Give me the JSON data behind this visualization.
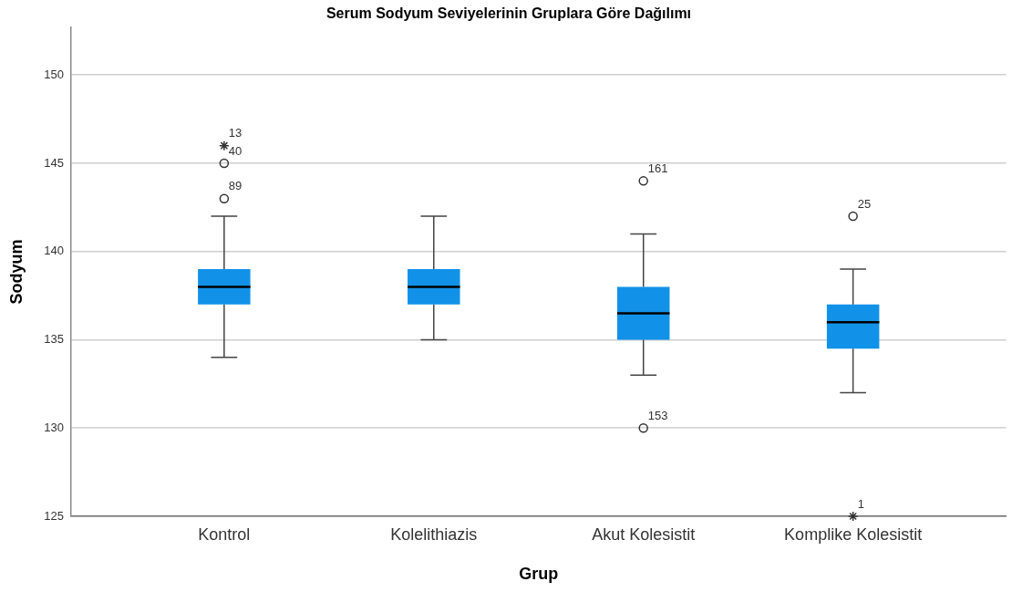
{
  "chart_data": {
    "type": "box",
    "title": "Serum Sodyum Seviyelerinin Gruplara Göre Dağılımı",
    "xlabel": "Grup",
    "ylabel": "Sodyum",
    "categories": [
      "Kontrol",
      "Kolelithiazis",
      "Akut Kolesistit",
      "Komplike Kolesistit"
    ],
    "series": [
      {
        "type": "box",
        "color": "#1192e8",
        "boxes": [
          {
            "low": 134,
            "q1": 137,
            "median": 138,
            "q3": 139,
            "high": 142
          },
          {
            "low": 135,
            "q1": 137,
            "median": 138,
            "q3": 139,
            "high": 142
          },
          {
            "low": 133,
            "q1": 135,
            "median": 136.5,
            "q3": 138,
            "high": 141
          },
          {
            "low": 132,
            "q1": 134.5,
            "median": 136,
            "q3": 137,
            "high": 139
          }
        ]
      },
      {
        "type": "scatter",
        "color": "#333333",
        "marker": "circle",
        "x": [
          "Kontrol",
          "Kontrol",
          "Akut Kolesistit",
          "Akut Kolesistit",
          "Komplike Kolesistit"
        ],
        "values": [
          143,
          145,
          144,
          130,
          142
        ]
      },
      {
        "type": "scatter",
        "color": "#333333",
        "marker": "cross",
        "x": [
          "Kontrol",
          "Komplike Kolesistit"
        ],
        "values": [
          146,
          125
        ]
      }
    ],
    "ylim": [
      125,
      152.7
    ],
    "yticks": [
      125,
      130,
      135,
      140,
      145,
      150
    ],
    "grid": "y",
    "annotations": [
      {
        "text": "13",
        "x": "Kontrol",
        "y": 146
      },
      {
        "text": "40",
        "x": "Kontrol",
        "y": 145
      },
      {
        "text": "89",
        "x": "Kontrol",
        "y": 143
      },
      {
        "text": "161",
        "x": "Akut Kolesistit",
        "y": 144
      },
      {
        "text": "153",
        "x": "Akut Kolesistit",
        "y": 130
      },
      {
        "text": "25",
        "x": "Komplike Kolesistit",
        "y": 142
      },
      {
        "text": "1",
        "x": "Komplike Kolesistit",
        "y": 125
      }
    ]
  }
}
